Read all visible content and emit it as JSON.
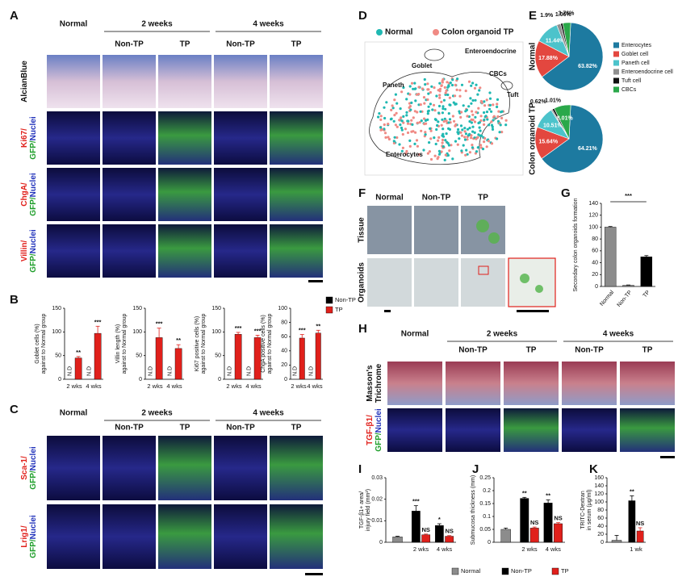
{
  "figure": {
    "A": {
      "label": "A",
      "groups": [
        "Normal",
        "2 weeks",
        "4 weeks"
      ],
      "columns": [
        "Non-TP",
        "TP",
        "Non-TP",
        "TP"
      ],
      "rows": [
        [
          [
            "AlcianBlue"
          ]
        ],
        [
          [
            "Ki67/"
          ],
          [
            "GFP/",
            "Nuclei"
          ]
        ],
        [
          [
            "ChgA/"
          ],
          [
            "GFP/",
            "Nuclei"
          ]
        ],
        [
          [
            "Villin/"
          ],
          [
            "GFP/",
            "Nuclei"
          ]
        ]
      ]
    },
    "C": {
      "label": "C",
      "groups": [
        "Normal",
        "2 weeks",
        "4 weeks"
      ],
      "columns": [
        "Non-TP",
        "TP",
        "Non-TP",
        "TP"
      ],
      "rows": [
        [
          [
            "Sca-1/"
          ],
          [
            "GFP/",
            "Nuclei"
          ]
        ],
        [
          [
            "Lrig1/"
          ],
          [
            "GFP/",
            "Nuclei"
          ]
        ]
      ]
    },
    "D": {
      "label": "D",
      "legend": [
        "Normal",
        "Colon organoid TP"
      ],
      "colors": [
        "#1fb8b2",
        "#f08a84"
      ],
      "clusters": [
        "Goblet",
        "Enteroendocrine",
        "Paneth",
        "CBCs",
        "Tuft",
        "Enterocytes"
      ]
    },
    "F": {
      "label": "F",
      "columns": [
        "Normal",
        "Non-TP",
        "TP"
      ],
      "rows": [
        "Tissue",
        "Organoids"
      ]
    },
    "H": {
      "label": "H",
      "groups": [
        "Normal",
        "2 weeks",
        "4 weeks"
      ],
      "columns": [
        "Non-TP",
        "TP",
        "Non-TP",
        "TP"
      ],
      "rows": [
        [
          [
            "Masson's"
          ],
          [
            "Trichrome"
          ]
        ],
        [
          [
            "TGF-β1/"
          ],
          [
            "GFP/",
            "Nuclei"
          ]
        ]
      ]
    }
  },
  "chart_data": [
    {
      "type": "bar",
      "panel": "B",
      "ylabel": [
        "Goblet cells (%)",
        "against to Normal group"
      ],
      "categories": [
        "2 wks",
        "4 wks"
      ],
      "series": [
        {
          "color": "#000000",
          "values": [
            null,
            null
          ],
          "value_labels": [
            "N.D",
            "N.D"
          ]
        },
        {
          "color": "#e0201b",
          "values": [
            45,
            97
          ],
          "errors": [
            3,
            15
          ],
          "significance": [
            "**",
            "***"
          ]
        }
      ],
      "ylim": [
        0,
        150
      ],
      "yticks": [
        0,
        50,
        100,
        150
      ]
    },
    {
      "type": "bar",
      "ylabel": [
        "Villin length (%)",
        "against to Normal group"
      ],
      "categories": [
        "2 wks",
        "4 wks"
      ],
      "series": [
        {
          "color": "#000000",
          "values": [
            null,
            null
          ],
          "value_labels": [
            "N.D",
            "N.D"
          ]
        },
        {
          "color": "#e0201b",
          "values": [
            88,
            65
          ],
          "errors": [
            20,
            8
          ],
          "significance": [
            "***",
            "**"
          ]
        }
      ],
      "ylim": [
        0,
        150
      ],
      "yticks": [
        0,
        50,
        100,
        150
      ]
    },
    {
      "type": "bar",
      "ylabel": [
        "Ki67 positive cells (%)",
        "against to Normal group"
      ],
      "categories": [
        "2 wks",
        "4 wks"
      ],
      "series": [
        {
          "color": "#000000",
          "values": [
            null,
            null
          ],
          "value_labels": [
            "N.D",
            "N.D"
          ]
        },
        {
          "color": "#e0201b",
          "values": [
            95,
            88
          ],
          "errors": [
            4,
            5
          ],
          "significance": [
            "***",
            "***"
          ]
        }
      ],
      "ylim": [
        0,
        150
      ],
      "yticks": [
        0,
        50,
        100,
        150
      ]
    },
    {
      "type": "bar",
      "ylabel": [
        "ChgA positive cells (%)",
        "against to Normal group"
      ],
      "categories": [
        "2 wks",
        "4 wks"
      ],
      "series": [
        {
          "name": "Non-TP",
          "color": "#000000",
          "values": [
            null,
            null
          ],
          "value_labels": [
            "N.D",
            "N.D"
          ]
        },
        {
          "name": "TP",
          "color": "#e0201b",
          "values": [
            58,
            65
          ],
          "errors": [
            5,
            4
          ],
          "significance": [
            "***",
            "**"
          ]
        }
      ],
      "ylim": [
        0,
        100
      ],
      "yticks": [
        0,
        20,
        40,
        60,
        80,
        100
      ],
      "legend": true
    },
    {
      "type": "pie",
      "panel": "E",
      "title": "Normal",
      "categories": [
        "Enterocytes",
        "Goblet cell",
        "Paneth cell",
        "Enteroendocrine cell",
        "Tuft cell",
        "CBCs"
      ],
      "values": [
        63.82,
        17.88,
        11.44,
        1.9,
        1.06,
        3.76
      ],
      "value_labels": [
        "63.82%",
        "17.88%",
        "11.44%",
        "1.9%",
        "1.06%",
        "3.76%"
      ],
      "colors": [
        "#1d7aa0",
        "#e3473f",
        "#4cc3cb",
        "#8f8f8f",
        "#111111",
        "#2aa84a"
      ],
      "legend": true
    },
    {
      "type": "pie",
      "title": "Colon organoid TP",
      "values": [
        64.21,
        15.64,
        10.51,
        0.62,
        1.01,
        8.01
      ],
      "value_labels": [
        "64.21%",
        "15.64%",
        "10.51%",
        "0.62%",
        "1.01%",
        "8.01%"
      ],
      "colors": [
        "#1d7aa0",
        "#e3473f",
        "#4cc3cb",
        "#8f8f8f",
        "#111111",
        "#2aa84a"
      ]
    },
    {
      "type": "bar",
      "panel": "G",
      "ylabel": [
        "Secondary colon organoids formation"
      ],
      "categories": [
        "Normal",
        "Non-TP",
        "TP"
      ],
      "values": [
        100,
        2,
        50
      ],
      "errors": [
        1,
        0.5,
        2
      ],
      "colors": [
        "#8c8c8c",
        "#8c8c8c",
        "#000000"
      ],
      "annotation": "***",
      "ylim": [
        0,
        140
      ],
      "yticks": [
        0,
        20,
        40,
        60,
        80,
        100,
        120,
        140
      ]
    },
    {
      "type": "bar",
      "panel": "I",
      "ylabel": [
        "TGF-β1+ area/",
        "injury field (mm²)"
      ],
      "categories": [
        null,
        "2 wks",
        "4 wks"
      ],
      "series": [
        {
          "name": "Normal",
          "color": "#8c8c8c",
          "values": [
            0.0025,
            null,
            null
          ],
          "errors": [
            0.0003,
            null,
            null
          ]
        },
        {
          "name": "Non-TP",
          "color": "#000000",
          "values": [
            null,
            0.0145,
            0.0078
          ],
          "errors": [
            null,
            0.0025,
            0.0008
          ],
          "significance": [
            null,
            "***",
            "*"
          ]
        },
        {
          "name": "TP",
          "color": "#e0201b",
          "values": [
            null,
            0.0035,
            0.0028
          ],
          "errors": [
            null,
            0.0003,
            0.0003
          ],
          "significance": [
            null,
            "NS",
            "NS"
          ]
        }
      ],
      "ylim": [
        0,
        0.03
      ],
      "yticks": [
        0,
        0.01,
        0.02,
        0.03
      ],
      "legend": true
    },
    {
      "type": "bar",
      "panel": "J",
      "ylabel": [
        "Submucosa thickness (mm)"
      ],
      "categories": [
        null,
        "2 wks",
        "4 wks"
      ],
      "series": [
        {
          "color": "#8c8c8c",
          "values": [
            0.05,
            null,
            null
          ],
          "errors": [
            0.005,
            null,
            null
          ]
        },
        {
          "color": "#000000",
          "values": [
            null,
            0.17,
            0.152
          ],
          "errors": [
            null,
            0.004,
            0.012
          ],
          "significance": [
            null,
            "**",
            "**"
          ]
        },
        {
          "color": "#e0201b",
          "values": [
            null,
            0.055,
            0.072
          ],
          "errors": [
            null,
            0.004,
            0.004
          ],
          "significance": [
            null,
            "NS",
            "NS"
          ]
        }
      ],
      "ylim": [
        0,
        0.25
      ],
      "yticks": [
        0,
        0.05,
        0.1,
        0.15,
        0.2,
        0.25
      ]
    },
    {
      "type": "bar",
      "panel": "K",
      "ylabel": [
        "TRITC-Dextran",
        "in serum (μg/ml)"
      ],
      "categories": [
        null,
        "1 wk"
      ],
      "series": [
        {
          "color": "#8c8c8c",
          "values": [
            5,
            null
          ],
          "errors": [
            12,
            null
          ]
        },
        {
          "color": "#000000",
          "values": [
            null,
            103
          ],
          "errors": [
            null,
            12
          ],
          "significance": [
            null,
            "**"
          ]
        },
        {
          "color": "#e0201b",
          "values": [
            null,
            28
          ],
          "errors": [
            null,
            8
          ],
          "significance": [
            null,
            "NS"
          ]
        }
      ],
      "ylim": [
        0,
        160
      ],
      "yticks": [
        0,
        20,
        40,
        60,
        80,
        100,
        120,
        140,
        160
      ]
    }
  ]
}
